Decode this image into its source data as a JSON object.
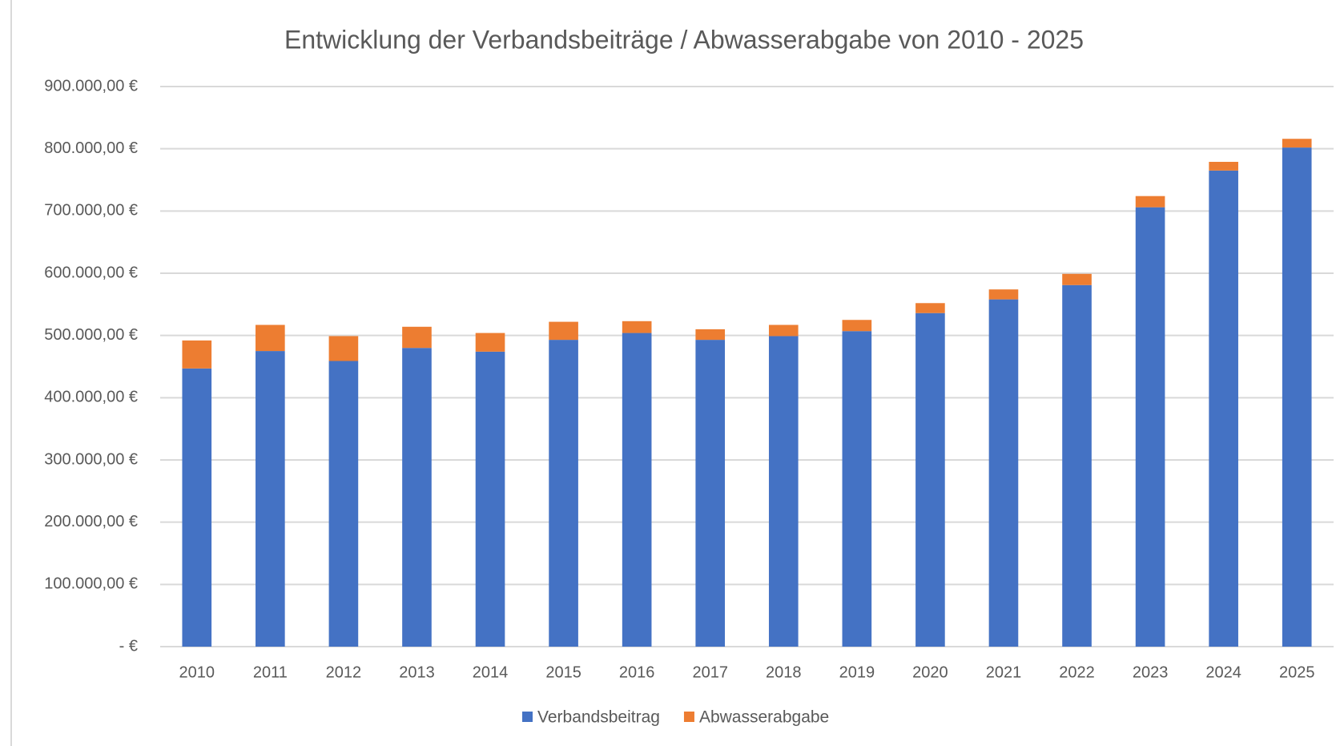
{
  "chart_data": {
    "type": "stacked_bar",
    "title": "Entwicklung der Verbandsbeiträge / Abwasserabgabe von 2010 - 2025",
    "categories": [
      "2010",
      "2011",
      "2012",
      "2013",
      "2014",
      "2015",
      "2016",
      "2017",
      "2018",
      "2019",
      "2020",
      "2021",
      "2022",
      "2023",
      "2024",
      "2025"
    ],
    "series": [
      {
        "name": "Verbandsbeitrag",
        "color": "#4472c4",
        "values": [
          447000,
          475000,
          459000,
          480000,
          474000,
          493000,
          504000,
          493000,
          499000,
          507000,
          536000,
          558000,
          581000,
          706000,
          765000,
          802000
        ]
      },
      {
        "name": "Abwasserabgabe",
        "color": "#ed7d31",
        "values": [
          45000,
          42000,
          40000,
          34000,
          30000,
          29000,
          19000,
          17000,
          18000,
          18000,
          16000,
          16000,
          18000,
          18000,
          14000,
          14000
        ]
      }
    ],
    "ylim": [
      0,
      900000
    ],
    "yticks": [
      {
        "value": 0,
        "label": "-  €"
      },
      {
        "value": 100000,
        "label": "100.000,00 €"
      },
      {
        "value": 200000,
        "label": "200.000,00 €"
      },
      {
        "value": 300000,
        "label": "300.000,00 €"
      },
      {
        "value": 400000,
        "label": "400.000,00 €"
      },
      {
        "value": 500000,
        "label": "500.000,00 €"
      },
      {
        "value": 600000,
        "label": "600.000,00 €"
      },
      {
        "value": 700000,
        "label": "700.000,00 €"
      },
      {
        "value": 800000,
        "label": "800.000,00 €"
      },
      {
        "value": 900000,
        "label": "900.000,00 €"
      }
    ],
    "grid": true,
    "legend": "bottom"
  }
}
